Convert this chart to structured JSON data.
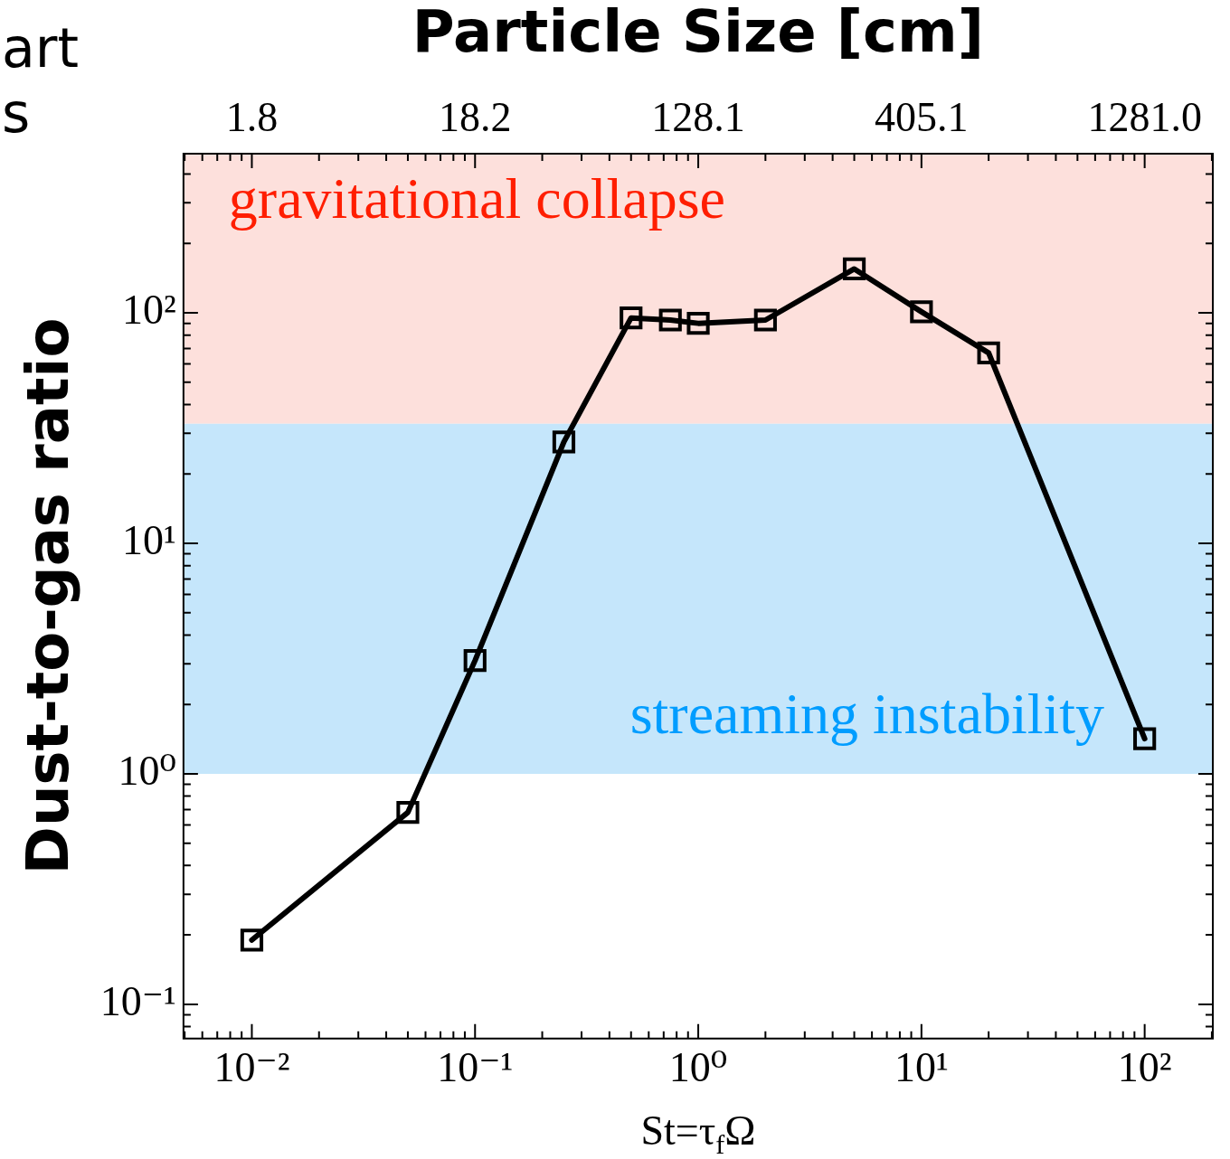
{
  "chart_data": {
    "type": "line",
    "title": "Particle Size [cm]",
    "xlabel": "St=τ$_{f}$Ω",
    "ylabel": "Dust-to-gas ratio",
    "annotations": [
      "art",
      "s",
      {
        "text": "1.8",
        "x": 0.01
      },
      {
        "text": "18.2",
        "x": 0.1
      },
      {
        "text": "128.1",
        "x": 1
      },
      {
        "text": "405.1",
        "x": 10
      },
      {
        "text": "1281.0",
        "x": 100
      }
    ],
    "x": [
      0.01,
      0.05,
      0.1,
      0.25,
      0.5,
      0.75,
      1,
      2,
      5,
      10,
      20,
      100
    ],
    "series": [
      {
        "color": "#000000",
        "values": [
          0.19,
          0.68,
          3.1,
          27.5,
          95,
          93,
          90,
          93,
          155,
          101,
          67,
          1.42
        ]
      }
    ],
    "marker": "square",
    "line_style": "solid",
    "log": "xy",
    "grid": false,
    "legend": false,
    "xlim": [
      0.00494,
      202
    ],
    "ylim": [
      0.071,
      490
    ],
    "xticks": [
      {
        "value": 0.01,
        "label": "10⁻²"
      },
      {
        "value": 0.1,
        "label": "10⁻¹"
      },
      {
        "value": 1,
        "label": "10⁰"
      },
      {
        "value": 10,
        "label": "10¹"
      },
      {
        "value": 100,
        "label": "10²"
      }
    ],
    "yticks": [
      {
        "value": 0.1,
        "label": "10⁻¹"
      },
      {
        "value": 1,
        "label": "10⁰"
      },
      {
        "value": 10,
        "label": "10¹"
      },
      {
        "value": 100,
        "label": "10²"
      }
    ],
    "bands": [
      {
        "axis": "y",
        "from": 33,
        "to": 490,
        "label": "gravitational collapse",
        "color": "#fde0dc"
      },
      {
        "axis": "y",
        "from": 1,
        "to": 33,
        "label": "streaming instability",
        "color": "#c5e6fb"
      }
    ]
  }
}
